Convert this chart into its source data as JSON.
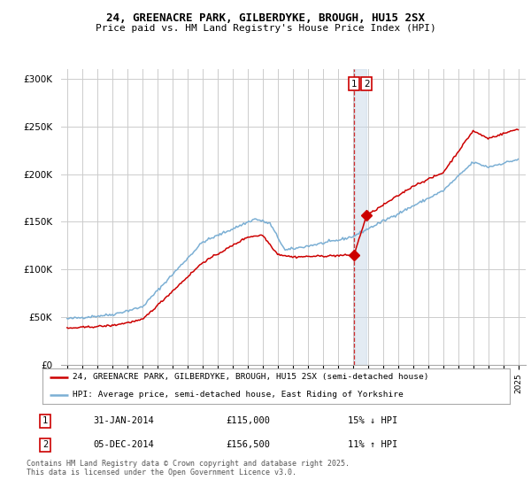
{
  "title": "24, GREENACRE PARK, GILBERDYKE, BROUGH, HU15 2SX",
  "subtitle": "Price paid vs. HM Land Registry's House Price Index (HPI)",
  "ylabel_ticks": [
    "£0",
    "£50K",
    "£100K",
    "£150K",
    "£200K",
    "£250K",
    "£300K"
  ],
  "ytick_values": [
    0,
    50000,
    100000,
    150000,
    200000,
    250000,
    300000
  ],
  "ylim": [
    0,
    310000
  ],
  "legend_line1": "24, GREENACRE PARK, GILBERDYKE, BROUGH, HU15 2SX (semi-detached house)",
  "legend_line2": "HPI: Average price, semi-detached house, East Riding of Yorkshire",
  "red_color": "#cc0000",
  "blue_color": "#7bafd4",
  "sale1_date": "31-JAN-2014",
  "sale1_price": "£115,000",
  "sale1_hpi": "15% ↓ HPI",
  "sale2_date": "05-DEC-2014",
  "sale2_price": "£156,500",
  "sale2_hpi": "11% ↑ HPI",
  "footer": "Contains HM Land Registry data © Crown copyright and database right 2025.\nThis data is licensed under the Open Government Licence v3.0.",
  "marker1_year": 2014.08,
  "marker1_val": 115000,
  "marker2_year": 2014.92,
  "marker2_val": 156500,
  "background_color": "#ffffff",
  "grid_color": "#cccccc"
}
